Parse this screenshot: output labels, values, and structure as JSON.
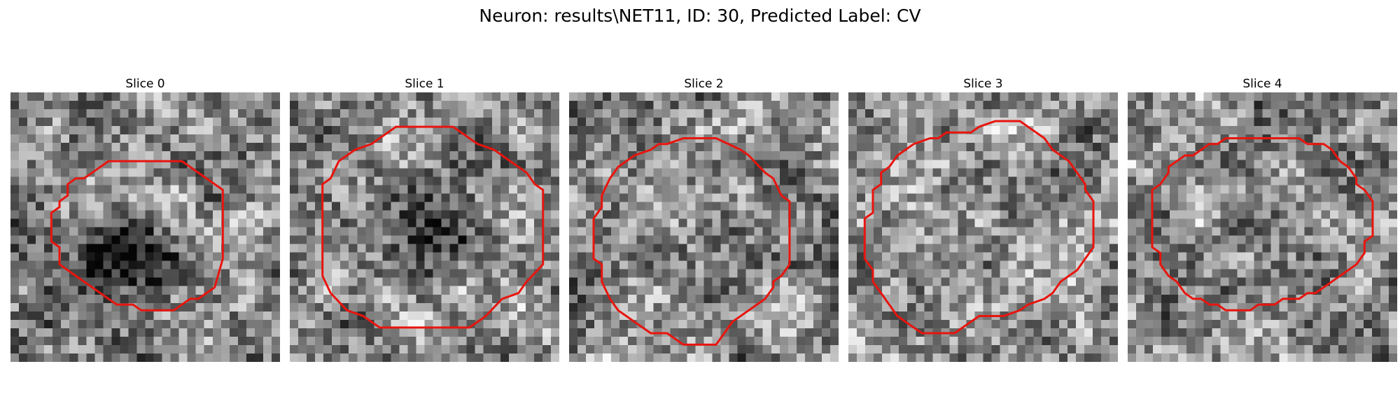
{
  "figure": {
    "title": "Neuron: results\\NET11, ID: 30, Predicted Label: CV"
  },
  "panels": [
    {
      "title": "Slice 0",
      "seed": 11,
      "contour": [
        [
          10,
          37
        ],
        [
          13,
          37
        ],
        [
          18,
          42
        ],
        [
          18,
          54
        ],
        [
          17,
          59
        ],
        [
          15,
          61
        ],
        [
          14,
          61
        ],
        [
          12,
          63
        ],
        [
          8,
          63
        ],
        [
          7,
          62
        ],
        [
          5,
          62
        ],
        [
          3,
          60
        ],
        [
          2,
          59
        ],
        [
          0,
          57
        ],
        [
          -1,
          56
        ],
        [
          -2,
          55
        ],
        [
          -2,
          52
        ],
        [
          -3,
          51
        ],
        [
          -3,
          46
        ],
        [
          -2,
          45
        ],
        [
          -2,
          44
        ],
        [
          -1,
          43
        ],
        [
          -1,
          41
        ],
        [
          0,
          40
        ],
        [
          1,
          40
        ],
        [
          2,
          39
        ],
        [
          3,
          38
        ],
        [
          4,
          37
        ]
      ],
      "dark_center": [
        5,
        53
      ],
      "dark_strength": 0.55
    },
    {
      "title": "Slice 1",
      "seed": 27,
      "contour": [
        [
          8,
          31
        ],
        [
          12,
          31
        ],
        [
          15,
          34
        ],
        [
          17,
          35
        ],
        [
          19,
          37
        ],
        [
          21,
          39
        ],
        [
          22,
          41
        ],
        [
          23,
          42
        ],
        [
          23,
          55
        ],
        [
          21,
          58
        ],
        [
          20,
          60
        ],
        [
          18,
          61
        ],
        [
          16,
          64
        ],
        [
          14,
          66
        ],
        [
          3,
          66
        ],
        [
          1,
          64
        ],
        [
          -1,
          63
        ],
        [
          -3,
          60
        ],
        [
          -4,
          57
        ],
        [
          -4,
          41
        ],
        [
          -3,
          40
        ],
        [
          -2,
          37
        ],
        [
          0,
          35
        ],
        [
          2,
          34
        ],
        [
          4,
          32
        ],
        [
          5,
          31
        ]
      ],
      "dark_center": [
        10,
        48
      ],
      "dark_strength": 0.2
    },
    {
      "title": "Slice 2",
      "seed": 43,
      "contour": [
        [
          8,
          33
        ],
        [
          10,
          33
        ],
        [
          13,
          35
        ],
        [
          14,
          36
        ],
        [
          16,
          39
        ],
        [
          17,
          40
        ],
        [
          18,
          43
        ],
        [
          19,
          44
        ],
        [
          19,
          55
        ],
        [
          18,
          57
        ],
        [
          17,
          58
        ],
        [
          17,
          59
        ],
        [
          16,
          61
        ],
        [
          15,
          62
        ],
        [
          12,
          65
        ],
        [
          11,
          67
        ],
        [
          10,
          69
        ],
        [
          6,
          69
        ],
        [
          4,
          67
        ],
        [
          2,
          67
        ],
        [
          1,
          66
        ],
        [
          0,
          65
        ],
        [
          -1,
          64
        ],
        [
          -2,
          63
        ],
        [
          -3,
          61
        ],
        [
          -4,
          58
        ],
        [
          -4,
          55
        ],
        [
          -5,
          54
        ],
        [
          -5,
          47
        ],
        [
          -4,
          45
        ],
        [
          -4,
          43
        ],
        [
          -3,
          40
        ],
        [
          -2,
          38
        ],
        [
          -1,
          37
        ],
        [
          0,
          36
        ],
        [
          2,
          35
        ],
        [
          3,
          34
        ],
        [
          4,
          34
        ],
        [
          6,
          33
        ]
      ],
      "dark_center": [
        8,
        48
      ],
      "dark_strength": 0.1
    },
    {
      "title": "Slice 3",
      "seed": 61,
      "contour": [
        [
          10,
          30
        ],
        [
          13,
          30
        ],
        [
          16,
          33
        ],
        [
          17,
          35
        ],
        [
          19,
          37
        ],
        [
          20,
          39
        ],
        [
          21,
          41
        ],
        [
          21,
          42
        ],
        [
          22,
          44
        ],
        [
          22,
          52
        ],
        [
          21,
          54
        ],
        [
          20,
          56
        ],
        [
          18,
          58
        ],
        [
          17,
          60
        ],
        [
          16,
          61
        ],
        [
          14,
          62
        ],
        [
          13,
          63
        ],
        [
          11,
          64
        ],
        [
          8,
          64
        ],
        [
          5,
          67
        ],
        [
          1,
          67
        ],
        [
          -2,
          64
        ],
        [
          -3,
          62
        ],
        [
          -4,
          60
        ],
        [
          -5,
          58
        ],
        [
          -5,
          56
        ],
        [
          -6,
          54
        ],
        [
          -6,
          47
        ],
        [
          -5,
          46
        ],
        [
          -5,
          42
        ],
        [
          -4,
          41
        ],
        [
          -4,
          39
        ],
        [
          -3,
          38
        ],
        [
          -2,
          36
        ],
        [
          -1,
          35
        ],
        [
          0,
          34
        ],
        [
          2,
          33
        ],
        [
          3,
          33
        ],
        [
          4,
          32
        ],
        [
          7,
          32
        ],
        [
          8,
          31
        ]
      ],
      "dark_center": [
        8,
        48
      ],
      "dark_strength": 0.0
    },
    {
      "title": "Slice 4",
      "seed": 79,
      "contour": [
        [
          8,
          33
        ],
        [
          13,
          33
        ],
        [
          14,
          34
        ],
        [
          16,
          34
        ],
        [
          17,
          35
        ],
        [
          18,
          37
        ],
        [
          19,
          38
        ],
        [
          20,
          40
        ],
        [
          20,
          41
        ],
        [
          21,
          42
        ],
        [
          22,
          44
        ],
        [
          22,
          50
        ],
        [
          21,
          51
        ],
        [
          21,
          53
        ],
        [
          20,
          55
        ],
        [
          19,
          56
        ],
        [
          18,
          57
        ],
        [
          17,
          58
        ],
        [
          16,
          59
        ],
        [
          15,
          60
        ],
        [
          14,
          60
        ],
        [
          13,
          61
        ],
        [
          11,
          61
        ],
        [
          10,
          62
        ],
        [
          8,
          62
        ],
        [
          7,
          63
        ],
        [
          4,
          63
        ],
        [
          3,
          62
        ],
        [
          2,
          62
        ],
        [
          1,
          61
        ],
        [
          0,
          61
        ],
        [
          -1,
          60
        ],
        [
          -2,
          58
        ],
        [
          -3,
          57
        ],
        [
          -4,
          55
        ],
        [
          -4,
          53
        ],
        [
          -5,
          52
        ],
        [
          -5,
          42
        ],
        [
          -4,
          41
        ],
        [
          -3,
          39
        ],
        [
          -3,
          38
        ],
        [
          -2,
          37
        ],
        [
          -1,
          36
        ],
        [
          0,
          36
        ],
        [
          1,
          35
        ],
        [
          2,
          34
        ],
        [
          3,
          34
        ],
        [
          4,
          33
        ]
      ],
      "dark_center": [
        8,
        48
      ],
      "dark_strength": 0.0
    }
  ]
}
